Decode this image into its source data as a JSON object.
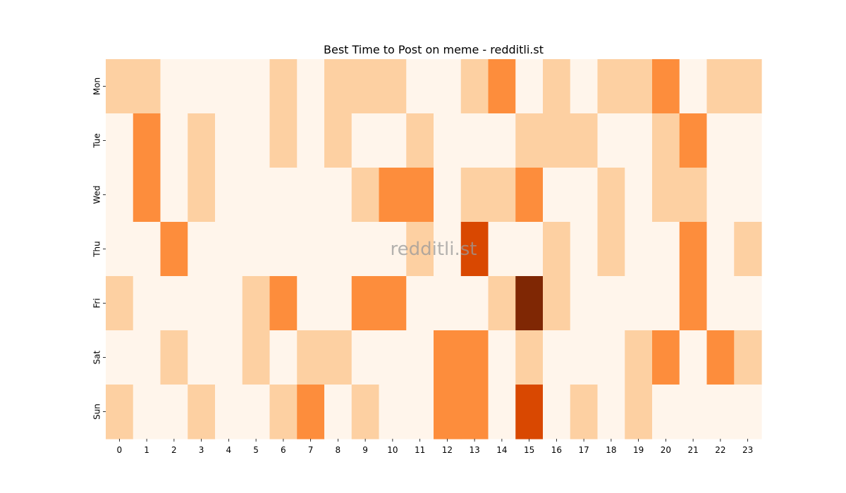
{
  "chart_data": {
    "type": "heatmap",
    "title": "Best Time to Post on meme - redditli.st",
    "watermark": "redditli.st",
    "x_categories": [
      "0",
      "1",
      "2",
      "3",
      "4",
      "5",
      "6",
      "7",
      "8",
      "9",
      "10",
      "11",
      "12",
      "13",
      "14",
      "15",
      "16",
      "17",
      "18",
      "19",
      "20",
      "21",
      "22",
      "23"
    ],
    "y_categories": [
      "Mon",
      "Tue",
      "Wed",
      "Thu",
      "Fri",
      "Sat",
      "Sun"
    ],
    "values": [
      [
        1,
        1,
        0,
        0,
        0,
        0,
        1,
        0,
        1,
        1,
        1,
        0,
        0,
        1,
        2,
        0,
        1,
        0,
        1,
        1,
        2,
        0,
        1,
        1
      ],
      [
        0,
        2,
        0,
        1,
        0,
        0,
        1,
        0,
        1,
        0,
        0,
        1,
        0,
        0,
        0,
        1,
        1,
        1,
        0,
        0,
        1,
        2,
        0,
        0
      ],
      [
        0,
        2,
        0,
        1,
        0,
        0,
        0,
        0,
        0,
        1,
        2,
        2,
        0,
        1,
        1,
        2,
        0,
        0,
        1,
        0,
        1,
        1,
        0,
        0
      ],
      [
        0,
        0,
        2,
        0,
        0,
        0,
        0,
        0,
        0,
        0,
        0,
        1,
        0,
        3,
        0,
        0,
        1,
        0,
        1,
        0,
        0,
        2,
        0,
        1
      ],
      [
        1,
        0,
        0,
        0,
        0,
        1,
        2,
        0,
        0,
        2,
        2,
        0,
        0,
        0,
        1,
        4,
        1,
        0,
        0,
        0,
        0,
        2,
        0,
        0
      ],
      [
        0,
        0,
        1,
        0,
        0,
        1,
        0,
        1,
        1,
        0,
        0,
        0,
        2,
        2,
        0,
        1,
        0,
        0,
        0,
        1,
        2,
        0,
        2,
        1
      ],
      [
        1,
        0,
        0,
        1,
        0,
        0,
        1,
        2,
        0,
        1,
        0,
        0,
        2,
        2,
        0,
        3,
        0,
        1,
        0,
        1,
        0,
        0,
        0,
        0
      ]
    ],
    "value_range": [
      0,
      4
    ],
    "colormap": "Oranges",
    "colors": [
      "#fff5eb",
      "#fdd0a2",
      "#fd8d3c",
      "#d94801",
      "#7f2704"
    ],
    "colorbar": false,
    "grid": false
  }
}
